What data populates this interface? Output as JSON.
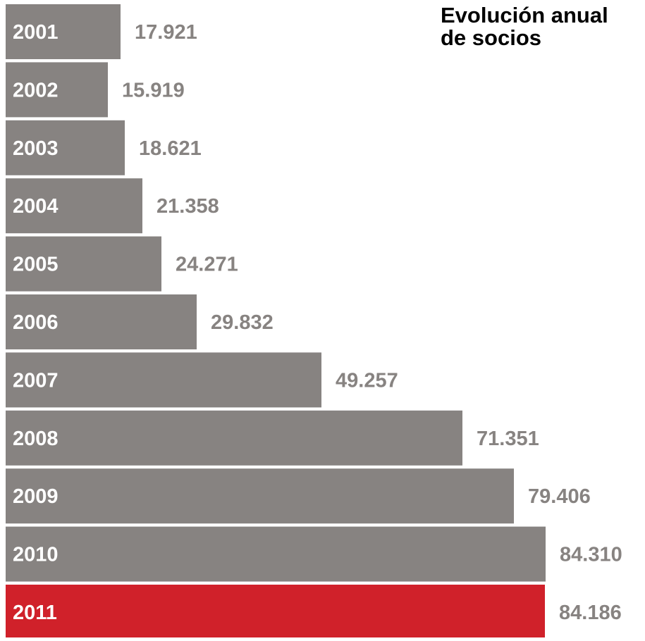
{
  "chart_data": {
    "type": "bar",
    "orientation": "horizontal",
    "title": [
      "Evolución anual",
      "de socios"
    ],
    "categories": [
      "2001",
      "2002",
      "2003",
      "2004",
      "2005",
      "2006",
      "2007",
      "2008",
      "2009",
      "2010",
      "2011"
    ],
    "values": [
      17921,
      15919,
      18621,
      21358,
      24271,
      29832,
      49257,
      71351,
      79406,
      84310,
      84186
    ],
    "value_labels": [
      "17.921",
      "15.919",
      "18.621",
      "21.358",
      "24.271",
      "29.832",
      "49.257",
      "71.351",
      "79.406",
      "84.310",
      "84.186"
    ],
    "xlim": [
      0,
      84310
    ],
    "grid": false,
    "legend": "none",
    "colors": {
      "bar": "#878381",
      "highlight_bar": "#d0212a",
      "highlight_category": "2011",
      "category_label": "#ffffff",
      "value_label": "#878381",
      "title": "#000000"
    }
  }
}
